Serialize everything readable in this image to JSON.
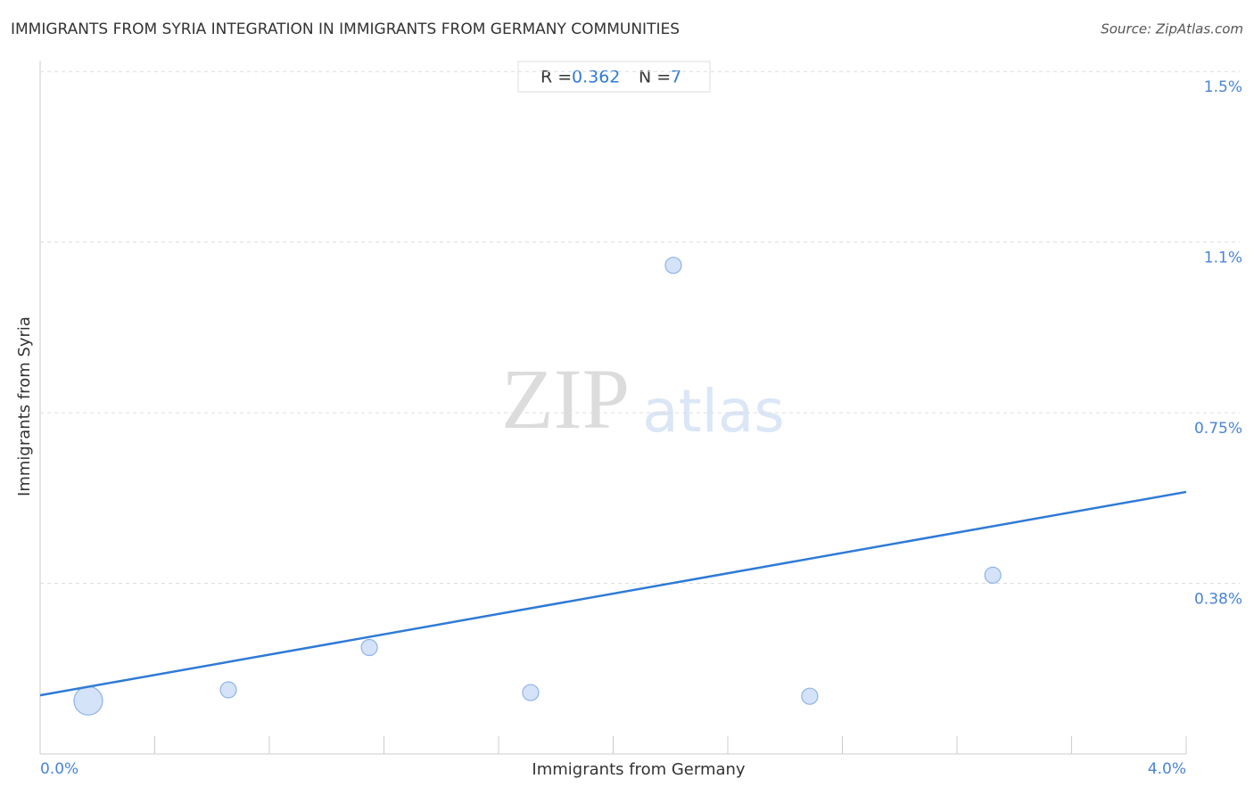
{
  "chart_data": {
    "type": "scatter",
    "title": "IMMIGRANTS FROM SYRIA INTEGRATION IN IMMIGRANTS FROM GERMANY COMMUNITIES",
    "source": "Source: ZipAtlas.com",
    "xlabel": "Immigrants from Germany",
    "ylabel": "Immigrants from Syria",
    "watermark": [
      "ZIP",
      "atlas"
    ],
    "stats": {
      "r_label": "R =",
      "r": 0.362,
      "n_label": "N =",
      "n": 7
    },
    "x": [
      0.168,
      0.657,
      1.149,
      1.712,
      2.21,
      2.686,
      3.325
    ],
    "series": [
      {
        "name": "Immigrants from Syria",
        "color": "#c5d9f5",
        "values": [
          0.117,
          0.141,
          0.234,
          0.135,
          1.074,
          0.127,
          0.393
        ],
        "sizes": [
          16,
          9,
          9,
          9,
          9,
          9,
          9
        ]
      }
    ],
    "trendline": {
      "color": "#2f7ad6",
      "x": [
        0,
        4
      ],
      "y": [
        0.129,
        0.576
      ]
    },
    "xlim": [
      0,
      4
    ],
    "ylim": [
      0,
      1.52
    ],
    "xticks": [
      {
        "value": 0,
        "label": "0.0%"
      },
      {
        "value": 0.4,
        "label": null
      },
      {
        "value": 0.8,
        "label": null
      },
      {
        "value": 1.2,
        "label": null
      },
      {
        "value": 1.6,
        "label": null
      },
      {
        "value": 2.0,
        "label": null
      },
      {
        "value": 2.4,
        "label": null
      },
      {
        "value": 2.8,
        "label": null
      },
      {
        "value": 3.2,
        "label": null
      },
      {
        "value": 3.6,
        "label": null
      },
      {
        "value": 4,
        "label": "4.0%"
      }
    ],
    "yticks": [
      {
        "value": 0.375,
        "label": "0.38%"
      },
      {
        "value": 0.75,
        "label": "0.75%"
      },
      {
        "value": 1.125,
        "label": "1.1%"
      },
      {
        "value": 1.5,
        "label": "1.5%"
      }
    ],
    "grid": true
  }
}
